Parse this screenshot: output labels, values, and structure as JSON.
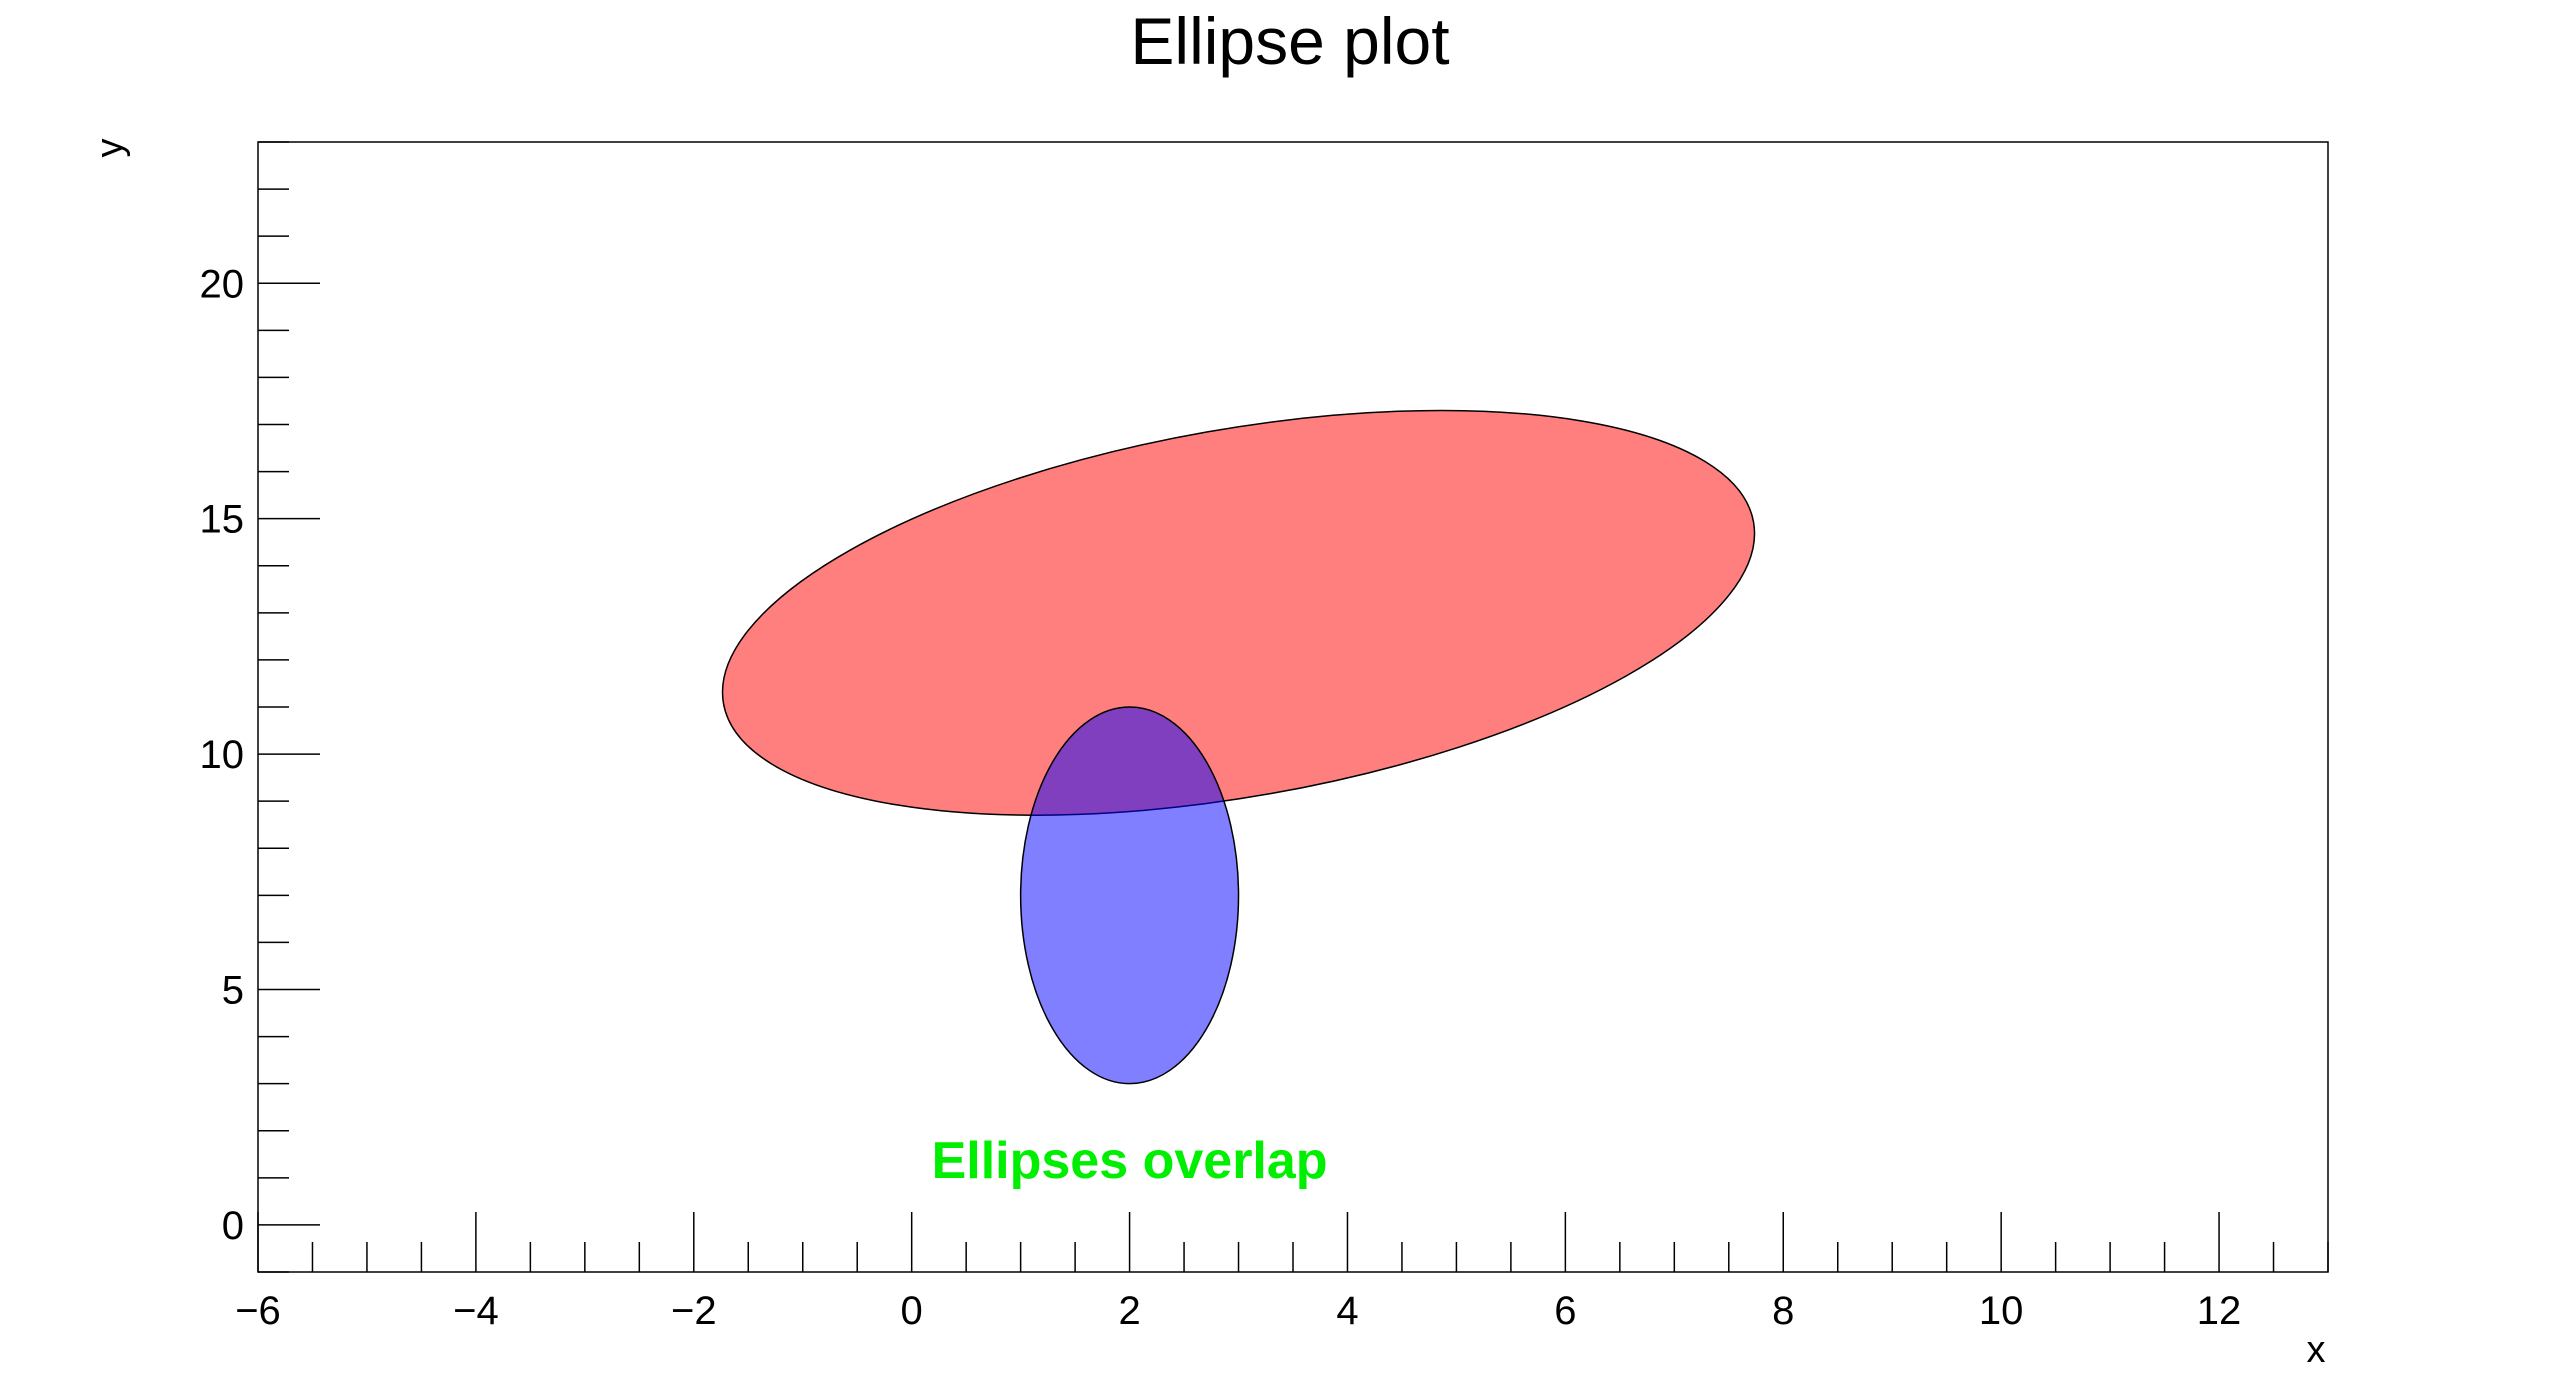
{
  "chart_data": {
    "type": "scatter",
    "title": "Ellipse plot",
    "xlabel": "x",
    "ylabel": "y",
    "xlim": [
      -6,
      13
    ],
    "ylim": [
      -1,
      23
    ],
    "x_ticks": [
      -6,
      -4,
      -2,
      0,
      2,
      4,
      6,
      8,
      10,
      12
    ],
    "x_tick_labels": [
      "−6",
      "−4",
      "−2",
      "0",
      "2",
      "4",
      "6",
      "8",
      "10",
      "12"
    ],
    "y_ticks": [
      0,
      5,
      10,
      15,
      20
    ],
    "y_tick_labels": [
      "0",
      "5",
      "10",
      "15",
      "20"
    ],
    "grid": false,
    "ellipses": [
      {
        "cx": 3,
        "cy": 13,
        "rx": 4.8,
        "ry": 3.9,
        "angle_deg": 10,
        "fill": "#ff0000",
        "opacity": 0.5,
        "stroke": "#000000"
      },
      {
        "cx": 2,
        "cy": 7,
        "rx": 1,
        "ry": 4,
        "angle_deg": 0,
        "fill": "#0000ff",
        "opacity": 0.5,
        "stroke": "#000000"
      }
    ],
    "annotations": [
      {
        "text": "Ellipses overlap",
        "x": 2,
        "y": 1,
        "color": "#00ee00"
      }
    ]
  }
}
